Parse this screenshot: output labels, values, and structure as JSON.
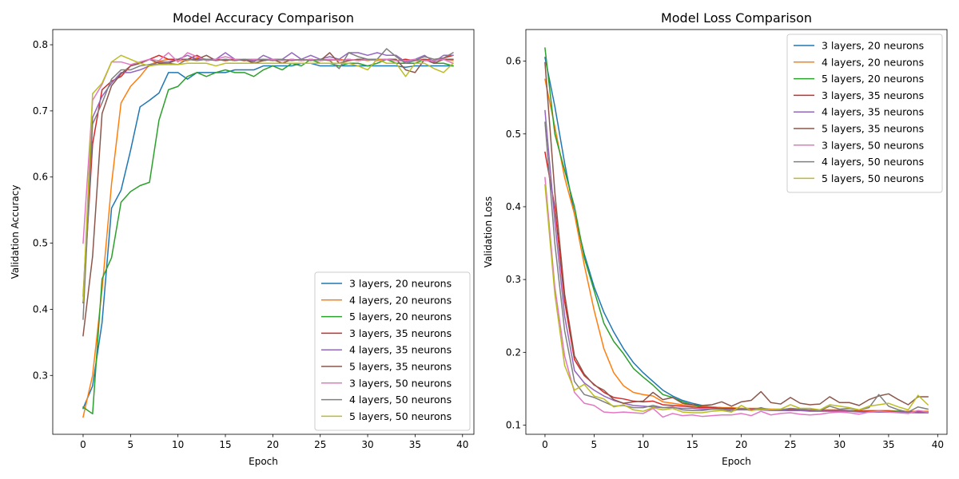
{
  "chart_data": [
    {
      "type": "line",
      "title": "Model Accuracy Comparison",
      "xlabel": "Epoch",
      "ylabel": "Validation Accuracy",
      "xlim": [
        -3.2,
        41.2
      ],
      "ylim": [
        0.211,
        0.823
      ],
      "xticks": [
        0,
        5,
        10,
        15,
        20,
        25,
        30,
        35,
        40
      ],
      "yticks": [
        0.3,
        0.4,
        0.5,
        0.6,
        0.7,
        0.8
      ],
      "legend_position": "lower-right",
      "series": [
        {
          "name": "3 layers, 20 neurons",
          "color": "#1f77b4",
          "values": [
            0.25,
            0.284,
            0.38,
            0.553,
            0.58,
            0.64,
            0.706,
            0.716,
            0.727,
            0.758,
            0.758,
            0.748,
            0.758,
            0.758,
            0.758,
            0.758,
            0.762,
            0.762,
            0.762,
            0.768,
            0.768,
            0.768,
            0.768,
            0.772,
            0.772,
            0.768,
            0.768,
            0.768,
            0.768,
            0.768,
            0.768,
            0.768,
            0.768,
            0.768,
            0.766,
            0.768,
            0.768,
            0.768,
            0.768,
            0.768
          ]
        },
        {
          "name": "4 layers, 20 neurons",
          "color": "#ff7f0e",
          "values": [
            0.237,
            0.3,
            0.43,
            0.59,
            0.712,
            0.737,
            0.752,
            0.77,
            0.775,
            0.778,
            0.776,
            0.776,
            0.78,
            0.778,
            0.778,
            0.776,
            0.778,
            0.778,
            0.776,
            0.778,
            0.776,
            0.778,
            0.776,
            0.778,
            0.776,
            0.778,
            0.776,
            0.778,
            0.776,
            0.778,
            0.776,
            0.778,
            0.778,
            0.776,
            0.778,
            0.776,
            0.778,
            0.776,
            0.778,
            0.776
          ]
        },
        {
          "name": "5 layers, 20 neurons",
          "color": "#2ca02c",
          "values": [
            0.252,
            0.242,
            0.446,
            0.478,
            0.562,
            0.578,
            0.587,
            0.592,
            0.686,
            0.732,
            0.737,
            0.752,
            0.758,
            0.752,
            0.758,
            0.762,
            0.758,
            0.758,
            0.752,
            0.762,
            0.768,
            0.762,
            0.772,
            0.768,
            0.778,
            0.772,
            0.772,
            0.768,
            0.772,
            0.772,
            0.768,
            0.772,
            0.778,
            0.772,
            0.772,
            0.772,
            0.778,
            0.772,
            0.772,
            0.768
          ]
        },
        {
          "name": "3 layers, 35 neurons",
          "color": "#d62728",
          "values": [
            0.41,
            0.65,
            0.732,
            0.745,
            0.752,
            0.768,
            0.772,
            0.778,
            0.784,
            0.778,
            0.778,
            0.778,
            0.784,
            0.776,
            0.778,
            0.776,
            0.778,
            0.776,
            0.778,
            0.776,
            0.778,
            0.776,
            0.778,
            0.776,
            0.778,
            0.776,
            0.778,
            0.776,
            0.778,
            0.776,
            0.778,
            0.776,
            0.778,
            0.776,
            0.778,
            0.776,
            0.778,
            0.776,
            0.78,
            0.784
          ]
        },
        {
          "name": "4 layers, 35 neurons",
          "color": "#9467bd",
          "values": [
            0.42,
            0.69,
            0.722,
            0.742,
            0.758,
            0.758,
            0.762,
            0.768,
            0.774,
            0.774,
            0.778,
            0.784,
            0.778,
            0.778,
            0.778,
            0.788,
            0.778,
            0.778,
            0.774,
            0.784,
            0.778,
            0.778,
            0.788,
            0.778,
            0.784,
            0.778,
            0.782,
            0.778,
            0.788,
            0.788,
            0.784,
            0.788,
            0.784,
            0.784,
            0.774,
            0.778,
            0.784,
            0.774,
            0.784,
            0.784
          ]
        },
        {
          "name": "5 layers, 35 neurons",
          "color": "#8c564b",
          "values": [
            0.36,
            0.48,
            0.696,
            0.738,
            0.756,
            0.768,
            0.772,
            0.778,
            0.772,
            0.772,
            0.778,
            0.778,
            0.778,
            0.784,
            0.776,
            0.778,
            0.776,
            0.778,
            0.772,
            0.776,
            0.778,
            0.772,
            0.778,
            0.776,
            0.778,
            0.776,
            0.788,
            0.772,
            0.776,
            0.778,
            0.778,
            0.776,
            0.778,
            0.778,
            0.762,
            0.758,
            0.778,
            0.772,
            0.778,
            0.778
          ]
        },
        {
          "name": "3 layers, 50 neurons",
          "color": "#e377c2",
          "values": [
            0.5,
            0.716,
            0.74,
            0.774,
            0.774,
            0.77,
            0.774,
            0.778,
            0.776,
            0.788,
            0.774,
            0.788,
            0.782,
            0.776,
            0.778,
            0.782,
            0.778,
            0.778,
            0.778,
            0.778,
            0.778,
            0.776,
            0.778,
            0.776,
            0.778,
            0.776,
            0.778,
            0.776,
            0.778,
            0.776,
            0.778,
            0.776,
            0.778,
            0.776,
            0.776,
            0.778,
            0.776,
            0.776,
            0.778,
            0.772
          ]
        },
        {
          "name": "4 layers, 50 neurons",
          "color": "#7f7f7f",
          "values": [
            0.385,
            0.68,
            0.712,
            0.748,
            0.762,
            0.762,
            0.768,
            0.77,
            0.77,
            0.772,
            0.77,
            0.778,
            0.776,
            0.778,
            0.776,
            0.778,
            0.776,
            0.778,
            0.776,
            0.778,
            0.776,
            0.778,
            0.776,
            0.778,
            0.776,
            0.778,
            0.776,
            0.764,
            0.788,
            0.782,
            0.778,
            0.778,
            0.794,
            0.782,
            0.772,
            0.776,
            0.782,
            0.778,
            0.78,
            0.788
          ]
        },
        {
          "name": "5 layers, 50 neurons",
          "color": "#bcbd22",
          "values": [
            0.412,
            0.726,
            0.742,
            0.774,
            0.784,
            0.778,
            0.772,
            0.768,
            0.77,
            0.77,
            0.77,
            0.772,
            0.772,
            0.772,
            0.768,
            0.772,
            0.772,
            0.772,
            0.772,
            0.772,
            0.772,
            0.772,
            0.772,
            0.772,
            0.772,
            0.772,
            0.772,
            0.772,
            0.772,
            0.768,
            0.762,
            0.778,
            0.772,
            0.772,
            0.752,
            0.772,
            0.772,
            0.764,
            0.758,
            0.772
          ]
        }
      ]
    },
    {
      "type": "line",
      "title": "Model Loss Comparison",
      "xlabel": "Epoch",
      "ylabel": "Validation Loss",
      "xlim": [
        -1.95,
        40.95
      ],
      "ylim": [
        0.0874,
        0.6434
      ],
      "xticks": [
        0,
        5,
        10,
        15,
        20,
        25,
        30,
        35,
        40
      ],
      "yticks": [
        0.1,
        0.2,
        0.3,
        0.4,
        0.5,
        0.6
      ],
      "legend_position": "upper-right",
      "series": [
        {
          "name": "3 layers, 20 neurons",
          "color": "#1f77b4",
          "values": [
            0.605,
            0.538,
            0.46,
            0.39,
            0.335,
            0.29,
            0.255,
            0.228,
            0.205,
            0.186,
            0.172,
            0.16,
            0.148,
            0.14,
            0.134,
            0.13,
            0.127,
            0.125,
            0.124,
            0.123,
            0.122,
            0.122,
            0.122,
            0.121,
            0.121,
            0.121,
            0.121,
            0.121,
            0.12,
            0.12,
            0.12,
            0.119,
            0.119,
            0.119,
            0.118,
            0.118,
            0.118,
            0.118,
            0.117,
            0.117
          ]
        },
        {
          "name": "4 layers, 20 neurons",
          "color": "#ff7f0e",
          "values": [
            0.575,
            0.51,
            0.44,
            0.39,
            0.32,
            0.258,
            0.205,
            0.172,
            0.154,
            0.145,
            0.142,
            0.14,
            0.132,
            0.13,
            0.128,
            0.127,
            0.126,
            0.125,
            0.124,
            0.124,
            0.123,
            0.123,
            0.123,
            0.122,
            0.122,
            0.122,
            0.122,
            0.121,
            0.121,
            0.121,
            0.121,
            0.12,
            0.12,
            0.12,
            0.12,
            0.12,
            0.119,
            0.119,
            0.119,
            0.119
          ]
        },
        {
          "name": "5 layers, 20 neurons",
          "color": "#2ca02c",
          "values": [
            0.618,
            0.5,
            0.45,
            0.4,
            0.33,
            0.285,
            0.24,
            0.215,
            0.198,
            0.178,
            0.166,
            0.155,
            0.142,
            0.138,
            0.132,
            0.128,
            0.125,
            0.124,
            0.123,
            0.123,
            0.122,
            0.122,
            0.122,
            0.121,
            0.121,
            0.121,
            0.121,
            0.12,
            0.12,
            0.12,
            0.12,
            0.12,
            0.119,
            0.119,
            0.119,
            0.119,
            0.119,
            0.118,
            0.118,
            0.118
          ]
        },
        {
          "name": "3 layers, 35 neurons",
          "color": "#d62728",
          "values": [
            0.475,
            0.4,
            0.27,
            0.19,
            0.168,
            0.156,
            0.145,
            0.138,
            0.136,
            0.133,
            0.132,
            0.133,
            0.128,
            0.127,
            0.126,
            0.125,
            0.124,
            0.124,
            0.123,
            0.123,
            0.122,
            0.122,
            0.122,
            0.121,
            0.121,
            0.121,
            0.121,
            0.12,
            0.12,
            0.12,
            0.12,
            0.119,
            0.119,
            0.119,
            0.119,
            0.119,
            0.118,
            0.118,
            0.118,
            0.118
          ]
        },
        {
          "name": "4 layers, 35 neurons",
          "color": "#9467bd",
          "values": [
            0.532,
            0.38,
            0.25,
            0.175,
            0.158,
            0.148,
            0.14,
            0.134,
            0.13,
            0.127,
            0.126,
            0.125,
            0.124,
            0.124,
            0.123,
            0.123,
            0.122,
            0.122,
            0.122,
            0.121,
            0.121,
            0.121,
            0.121,
            0.12,
            0.12,
            0.12,
            0.12,
            0.119,
            0.119,
            0.119,
            0.119,
            0.119,
            0.118,
            0.118,
            0.118,
            0.118,
            0.118,
            0.117,
            0.117,
            0.117
          ]
        },
        {
          "name": "5 layers, 35 neurons",
          "color": "#8c564b",
          "values": [
            0.598,
            0.42,
            0.28,
            0.195,
            0.17,
            0.155,
            0.148,
            0.135,
            0.13,
            0.132,
            0.133,
            0.145,
            0.135,
            0.138,
            0.13,
            0.128,
            0.127,
            0.128,
            0.132,
            0.126,
            0.132,
            0.134,
            0.146,
            0.131,
            0.129,
            0.138,
            0.13,
            0.128,
            0.129,
            0.139,
            0.131,
            0.131,
            0.127,
            0.135,
            0.14,
            0.143,
            0.135,
            0.128,
            0.139,
            0.139
          ]
        },
        {
          "name": "3 layers, 50 neurons",
          "color": "#e377c2",
          "values": [
            0.44,
            0.29,
            0.195,
            0.145,
            0.13,
            0.127,
            0.118,
            0.117,
            0.118,
            0.117,
            0.116,
            0.123,
            0.111,
            0.116,
            0.113,
            0.114,
            0.112,
            0.113,
            0.114,
            0.114,
            0.116,
            0.113,
            0.119,
            0.114,
            0.116,
            0.117,
            0.115,
            0.114,
            0.115,
            0.117,
            0.118,
            0.117,
            0.115,
            0.118,
            0.119,
            0.118,
            0.117,
            0.116,
            0.12,
            0.118
          ]
        },
        {
          "name": "4 layers, 50 neurons",
          "color": "#7f7f7f",
          "values": [
            0.516,
            0.35,
            0.23,
            0.16,
            0.142,
            0.138,
            0.132,
            0.126,
            0.127,
            0.124,
            0.124,
            0.127,
            0.124,
            0.125,
            0.121,
            0.12,
            0.12,
            0.122,
            0.122,
            0.119,
            0.123,
            0.12,
            0.124,
            0.12,
            0.121,
            0.123,
            0.122,
            0.121,
            0.12,
            0.126,
            0.122,
            0.123,
            0.121,
            0.124,
            0.142,
            0.126,
            0.121,
            0.118,
            0.125,
            0.122
          ]
        },
        {
          "name": "5 layers, 50 neurons",
          "color": "#bcbd22",
          "values": [
            0.43,
            0.28,
            0.182,
            0.148,
            0.156,
            0.14,
            0.136,
            0.125,
            0.128,
            0.121,
            0.119,
            0.124,
            0.121,
            0.123,
            0.118,
            0.117,
            0.117,
            0.119,
            0.12,
            0.118,
            0.127,
            0.12,
            0.122,
            0.121,
            0.122,
            0.128,
            0.123,
            0.123,
            0.121,
            0.128,
            0.126,
            0.124,
            0.121,
            0.126,
            0.128,
            0.13,
            0.125,
            0.121,
            0.141,
            0.128
          ]
        }
      ]
    }
  ]
}
